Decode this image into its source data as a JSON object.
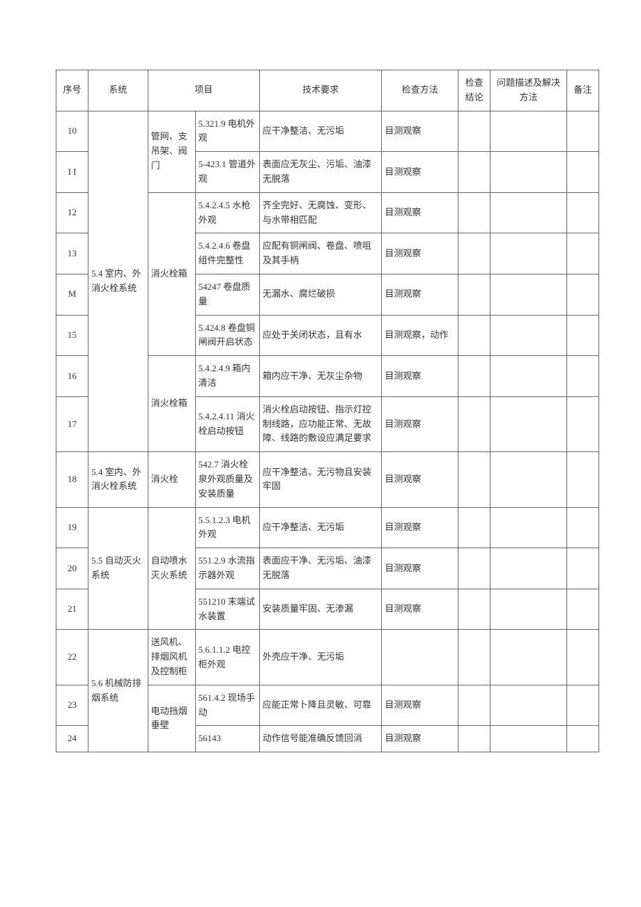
{
  "headers": {
    "seq": "序号",
    "system": "系统",
    "item": "项目",
    "requirement": "技术要求",
    "method": "检查方法",
    "result": "检查结论",
    "problem": "问题描述及解决方法",
    "remark": "备注"
  },
  "systems": {
    "s54": "5.4 室内、外消火栓系统",
    "s54b": "5.4 室内、外消火栓系统",
    "s55": "5.5 自动灭火系统",
    "s56": "5.6 机械防排烟系统"
  },
  "components": {
    "pipe": "管网、支吊架、阀门",
    "box1": "消火栓箱",
    "box2": "消火栓箱",
    "hydrant": "消火栓",
    "spray": "自动喷水灭火系统",
    "fan": "送风机、排烟风机及控制柜",
    "damper": "电动挡烟垂壁"
  },
  "rows": [
    {
      "seq": "10",
      "item": "5.321.9 电机外观",
      "req": "应干净整洁、无污垢",
      "method": "目测观察"
    },
    {
      "seq": "I I",
      "item": "5-423.1 管道外观",
      "req": "表面应无灰尘、污垢、油漆无脱落",
      "method": "目测观察"
    },
    {
      "seq": "12",
      "item": "5.4.2.4.5 水枪外观",
      "req": "齐全完好、无腐蚀、变形、与水带相匹配",
      "method": "目测观察"
    },
    {
      "seq": "13",
      "item": "5.4.2.4.6 卷盘组件完整性",
      "req": "应配有铜闸阀、卷盘、喷咀及其手柄",
      "method": "目测观察"
    },
    {
      "seq": "M",
      "item": "54247 卷盘质量",
      "req": "无漏水、腐烂破损",
      "method": "目测观察"
    },
    {
      "seq": "15",
      "item": "5.424.8 卷盘铜闸阀开启状态",
      "req": "应处于关闭状态，且有水",
      "method": "目测观察，动作"
    },
    {
      "seq": "16",
      "item": "5.4.2.4.9 箱内清洁",
      "req": "箱内应干净、无灰尘杂物",
      "method": "目测观察"
    },
    {
      "seq": "17",
      "item": "5.4,2.4.11 消火栓启动按钮",
      "req": "消火栓启动按钮、指示灯控制线路，应功能正常、无故障、线路的敷设应满足要求",
      "method": "目测观察"
    },
    {
      "seq": "18",
      "item": "542.7 消火栓泉外观质量及安装质量",
      "req": "应干净整洁、无污物且安装牢固",
      "method": "目测观察"
    },
    {
      "seq": "19",
      "item": "5.5.1.2.3 电机外观",
      "req": "应干净整洁、无污垢",
      "method": "目测观察"
    },
    {
      "seq": "20",
      "item": "551.2.9 水流指示器外观",
      "req": "表面应干净、无污垢、油漆无脱落",
      "method": "目测观察"
    },
    {
      "seq": "21",
      "item": "551210 末端试水装置",
      "req": "安装质量牢固、无渗漏",
      "method": "目测观察"
    },
    {
      "seq": "22",
      "item": "5.6.1.1.2 电控柜外观",
      "req": "外壳应干净、无污垢",
      "method": ""
    },
    {
      "seq": "23",
      "item": "561.4.2 现场手动",
      "req": "应能正常卜降且灵敏、可靠",
      "method": "目测观察"
    },
    {
      "seq": "24",
      "item": "56143",
      "req": "动作信号能准确反馈回消",
      "method": "目测观察"
    }
  ],
  "style": {
    "border_color": "#666666",
    "background_color": "#ffffff",
    "text_color": "#333333",
    "font_family": "SimSun",
    "font_size_pt": 10,
    "line_height": 1.6
  }
}
